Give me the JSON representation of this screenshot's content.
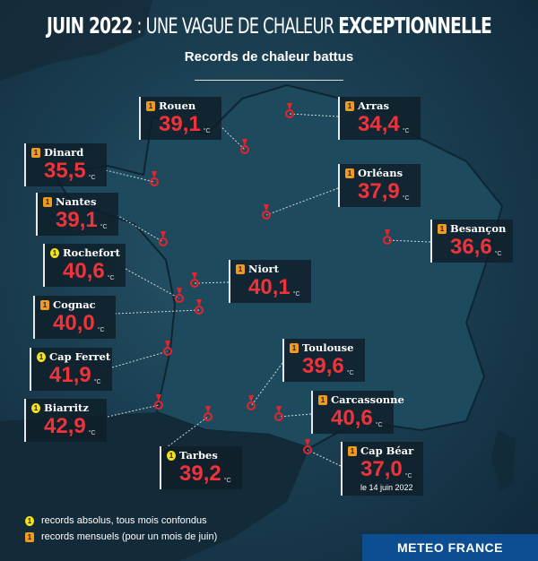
{
  "header": {
    "title_bold": "JUIN 2022",
    "title_thin": " : UNE VAGUE DE CHALEUR ",
    "title_bold2": "EXCEPTIONNELLE",
    "subtitle": "Records de chaleur battus"
  },
  "unit": "°C",
  "records": [
    {
      "city": "Rouen",
      "value": "39,1",
      "type": "mensuel"
    },
    {
      "city": "Arras",
      "value": "34,4",
      "type": "mensuel"
    },
    {
      "city": "Dinard",
      "value": "35,5",
      "type": "mensuel"
    },
    {
      "city": "Orléans",
      "value": "37,9",
      "type": "mensuel"
    },
    {
      "city": "Nantes",
      "value": "39,1",
      "type": "mensuel"
    },
    {
      "city": "Besançon",
      "value": "36,6",
      "type": "mensuel"
    },
    {
      "city": "Rochefort",
      "value": "40,6",
      "type": "absolu"
    },
    {
      "city": "Niort",
      "value": "40,1",
      "type": "mensuel"
    },
    {
      "city": "Cognac",
      "value": "40,0",
      "type": "mensuel"
    },
    {
      "city": "Toulouse",
      "value": "39,6",
      "type": "mensuel"
    },
    {
      "city": "Cap Ferret",
      "value": "41,9",
      "type": "absolu"
    },
    {
      "city": "Biarritz",
      "value": "42,9",
      "type": "absolu"
    },
    {
      "city": "Carcassonne",
      "value": "40,6",
      "type": "mensuel"
    },
    {
      "city": "Tarbes",
      "value": "39,2",
      "type": "absolu"
    },
    {
      "city": "Cap Béar",
      "value": "37,0",
      "type": "mensuel",
      "date": "le 14 juin 2022"
    }
  ],
  "legend": {
    "absolu": "records absolus, tous mois confondus",
    "mensuel": "records mensuels (pour un mois de juin)",
    "icon_digit": "1"
  },
  "brand": "METEO FRANCE",
  "colors": {
    "value": "#f0333a",
    "absolu": "#f5e31a",
    "mensuel": "#f29a1e",
    "brand": "#0d4e93"
  }
}
